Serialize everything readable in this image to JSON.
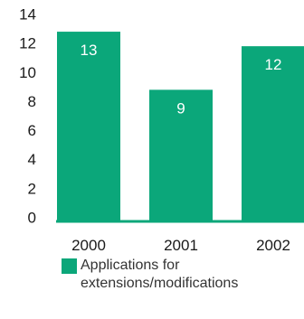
{
  "colors": {
    "bar": "#0ba77a",
    "axis_line": "#0ba77a",
    "text": "#1a1a1a"
  },
  "chart_data": {
    "type": "bar",
    "categories": [
      "2000",
      "2001",
      "2002"
    ],
    "series": [
      {
        "name": "Applications for extensions/modifications",
        "values": [
          13,
          9,
          12
        ]
      }
    ],
    "data_labels": [
      "13",
      "9",
      "12"
    ],
    "ylim": [
      0,
      14
    ],
    "yticks": [
      "0",
      "2",
      "4",
      "6",
      "8",
      "10",
      "12",
      "14"
    ],
    "grid": false,
    "legend_position": "bottom-left"
  }
}
